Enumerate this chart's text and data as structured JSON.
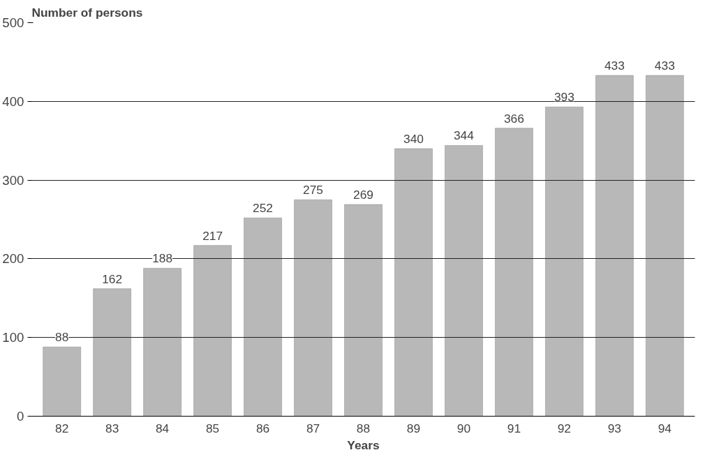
{
  "chart_data": {
    "type": "bar",
    "ylabel": "Number of persons",
    "xlabel": "Years",
    "categories": [
      "82",
      "83",
      "84",
      "85",
      "86",
      "87",
      "88",
      "89",
      "90",
      "91",
      "92",
      "93",
      "94"
    ],
    "values": [
      88,
      162,
      188,
      217,
      252,
      275,
      269,
      340,
      344,
      366,
      393,
      433,
      433
    ],
    "color": "#b8b8b8",
    "ylim": [
      0,
      500
    ],
    "yticks": [
      0,
      100,
      200,
      300,
      400,
      500
    ],
    "grid": "y",
    "data_labels": true
  }
}
